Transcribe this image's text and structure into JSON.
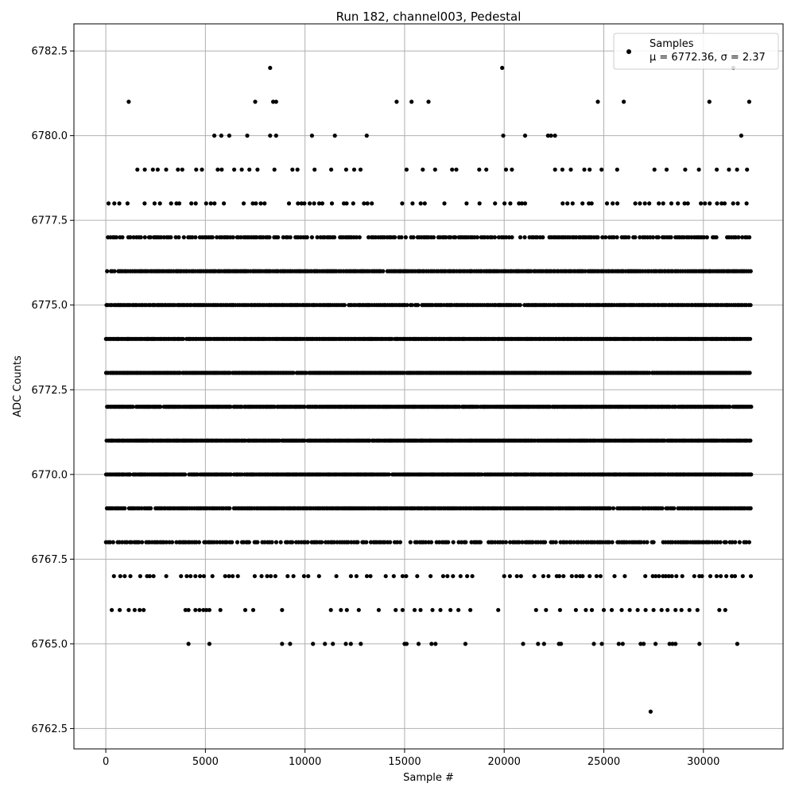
{
  "chart_data": {
    "type": "scatter",
    "title": "Run 182, channel003, Pedestal",
    "xlabel": "Sample #",
    "ylabel": "ADC Counts",
    "xlim": [
      -1600,
      34000
    ],
    "ylim": [
      6761.9,
      6783.3
    ],
    "xticks": [
      0,
      5000,
      10000,
      15000,
      20000,
      25000,
      30000
    ],
    "yticks": [
      6762.5,
      6765.0,
      6767.5,
      6770.0,
      6772.5,
      6775.0,
      6777.5,
      6780.0,
      6782.5
    ],
    "grid": true,
    "legend": {
      "placement": "top-right",
      "series_name": "Samples",
      "stats_text": "μ = 6772.36, σ = 2.37"
    },
    "series": [
      {
        "name": "Samples",
        "color": "#000000",
        "sample_range": [
          0,
          32400
        ],
        "dense_levels": [
          6767,
          6768,
          6769,
          6770,
          6771,
          6772,
          6773,
          6774,
          6775,
          6776,
          6777,
          6778,
          6779
        ],
        "sparse_points": [
          {
            "x": 4150,
            "y": 6765
          },
          {
            "x": 5200,
            "y": 6765
          },
          {
            "x": 8850,
            "y": 6765
          },
          {
            "x": 9250,
            "y": 6765
          },
          {
            "x": 10400,
            "y": 6765
          },
          {
            "x": 11000,
            "y": 6765
          },
          {
            "x": 11400,
            "y": 6765
          },
          {
            "x": 12050,
            "y": 6765
          },
          {
            "x": 12300,
            "y": 6765
          },
          {
            "x": 12800,
            "y": 6765
          },
          {
            "x": 15000,
            "y": 6765
          },
          {
            "x": 15100,
            "y": 6765
          },
          {
            "x": 15700,
            "y": 6765
          },
          {
            "x": 16350,
            "y": 6765
          },
          {
            "x": 16550,
            "y": 6765
          },
          {
            "x": 18050,
            "y": 6765
          },
          {
            "x": 20950,
            "y": 6765
          },
          {
            "x": 21700,
            "y": 6765
          },
          {
            "x": 22000,
            "y": 6765
          },
          {
            "x": 22750,
            "y": 6765
          },
          {
            "x": 22850,
            "y": 6765
          },
          {
            "x": 24500,
            "y": 6765
          },
          {
            "x": 24900,
            "y": 6765
          },
          {
            "x": 25750,
            "y": 6765
          },
          {
            "x": 25950,
            "y": 6765
          },
          {
            "x": 26850,
            "y": 6765
          },
          {
            "x": 27000,
            "y": 6765
          },
          {
            "x": 27600,
            "y": 6765
          },
          {
            "x": 28300,
            "y": 6765
          },
          {
            "x": 28450,
            "y": 6765
          },
          {
            "x": 28600,
            "y": 6765
          },
          {
            "x": 29800,
            "y": 6765
          },
          {
            "x": 31700,
            "y": 6765
          },
          {
            "x": 300,
            "y": 6766
          },
          {
            "x": 700,
            "y": 6766
          },
          {
            "x": 1150,
            "y": 6766
          },
          {
            "x": 1450,
            "y": 6766
          },
          {
            "x": 1700,
            "y": 6766
          },
          {
            "x": 1900,
            "y": 6766
          },
          {
            "x": 4000,
            "y": 6766
          },
          {
            "x": 4150,
            "y": 6766
          },
          {
            "x": 4500,
            "y": 6766
          },
          {
            "x": 4700,
            "y": 6766
          },
          {
            "x": 4900,
            "y": 6766
          },
          {
            "x": 5050,
            "y": 6766
          },
          {
            "x": 5200,
            "y": 6766
          },
          {
            "x": 5750,
            "y": 6766
          },
          {
            "x": 7000,
            "y": 6766
          },
          {
            "x": 7400,
            "y": 6766
          },
          {
            "x": 8850,
            "y": 6766
          },
          {
            "x": 11300,
            "y": 6766
          },
          {
            "x": 11800,
            "y": 6766
          },
          {
            "x": 12100,
            "y": 6766
          },
          {
            "x": 12700,
            "y": 6766
          },
          {
            "x": 13700,
            "y": 6766
          },
          {
            "x": 14550,
            "y": 6766
          },
          {
            "x": 14900,
            "y": 6766
          },
          {
            "x": 15500,
            "y": 6766
          },
          {
            "x": 15800,
            "y": 6766
          },
          {
            "x": 16400,
            "y": 6766
          },
          {
            "x": 16800,
            "y": 6766
          },
          {
            "x": 17300,
            "y": 6766
          },
          {
            "x": 17700,
            "y": 6766
          },
          {
            "x": 18300,
            "y": 6766
          },
          {
            "x": 19700,
            "y": 6766
          },
          {
            "x": 21600,
            "y": 6766
          },
          {
            "x": 22100,
            "y": 6766
          },
          {
            "x": 22800,
            "y": 6766
          },
          {
            "x": 23600,
            "y": 6766
          },
          {
            "x": 24100,
            "y": 6766
          },
          {
            "x": 24400,
            "y": 6766
          },
          {
            "x": 25000,
            "y": 6766
          },
          {
            "x": 25400,
            "y": 6766
          },
          {
            "x": 25900,
            "y": 6766
          },
          {
            "x": 26300,
            "y": 6766
          },
          {
            "x": 26700,
            "y": 6766
          },
          {
            "x": 27100,
            "y": 6766
          },
          {
            "x": 27500,
            "y": 6766
          },
          {
            "x": 27900,
            "y": 6766
          },
          {
            "x": 28200,
            "y": 6766
          },
          {
            "x": 28600,
            "y": 6766
          },
          {
            "x": 28900,
            "y": 6766
          },
          {
            "x": 29300,
            "y": 6766
          },
          {
            "x": 29700,
            "y": 6766
          },
          {
            "x": 30800,
            "y": 6766
          },
          {
            "x": 31100,
            "y": 6766
          },
          {
            "x": 5450,
            "y": 6780
          },
          {
            "x": 5800,
            "y": 6780
          },
          {
            "x": 6200,
            "y": 6780
          },
          {
            "x": 7100,
            "y": 6780
          },
          {
            "x": 8250,
            "y": 6780
          },
          {
            "x": 8550,
            "y": 6780
          },
          {
            "x": 10350,
            "y": 6780
          },
          {
            "x": 11500,
            "y": 6780
          },
          {
            "x": 13100,
            "y": 6780
          },
          {
            "x": 19950,
            "y": 6780
          },
          {
            "x": 21050,
            "y": 6780
          },
          {
            "x": 22200,
            "y": 6780
          },
          {
            "x": 22350,
            "y": 6780
          },
          {
            "x": 22550,
            "y": 6780
          },
          {
            "x": 31900,
            "y": 6780
          },
          {
            "x": 1150,
            "y": 6781
          },
          {
            "x": 7500,
            "y": 6781
          },
          {
            "x": 8400,
            "y": 6781
          },
          {
            "x": 8550,
            "y": 6781
          },
          {
            "x": 14600,
            "y": 6781
          },
          {
            "x": 15350,
            "y": 6781
          },
          {
            "x": 16200,
            "y": 6781
          },
          {
            "x": 24700,
            "y": 6781
          },
          {
            "x": 26000,
            "y": 6781
          },
          {
            "x": 30300,
            "y": 6781
          },
          {
            "x": 32300,
            "y": 6781
          },
          {
            "x": 8250,
            "y": 6782
          },
          {
            "x": 19900,
            "y": 6782
          },
          {
            "x": 31500,
            "y": 6782
          },
          {
            "x": 27350,
            "y": 6763
          }
        ]
      }
    ]
  }
}
